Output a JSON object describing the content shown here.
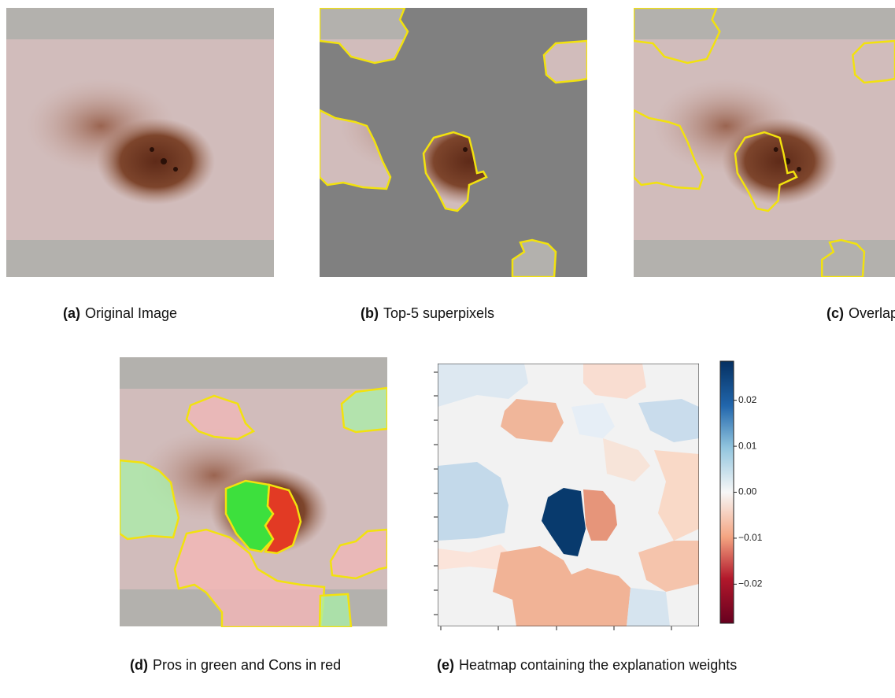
{
  "panels": [
    {
      "label": "(a)",
      "caption": "Original Image"
    },
    {
      "label": "(b)",
      "caption": "Top-5 superpixels"
    },
    {
      "label": "(c)",
      "caption": "Overlap"
    },
    {
      "label": "(d)",
      "caption": "Pros in green and Cons in red"
    },
    {
      "label": "(e)",
      "caption": "Heatmap containing the explanation weights"
    }
  ],
  "colorbar": {
    "lim": [
      -0.0285,
      0.0285
    ],
    "ticks": [
      {
        "value": 0.02,
        "label": "0.02"
      },
      {
        "value": 0.01,
        "label": "0.01"
      },
      {
        "value": 0,
        "label": "0.00"
      },
      {
        "value": -0.01,
        "label": "−0.01"
      },
      {
        "value": -0.02,
        "label": "−0.02"
      }
    ]
  }
}
